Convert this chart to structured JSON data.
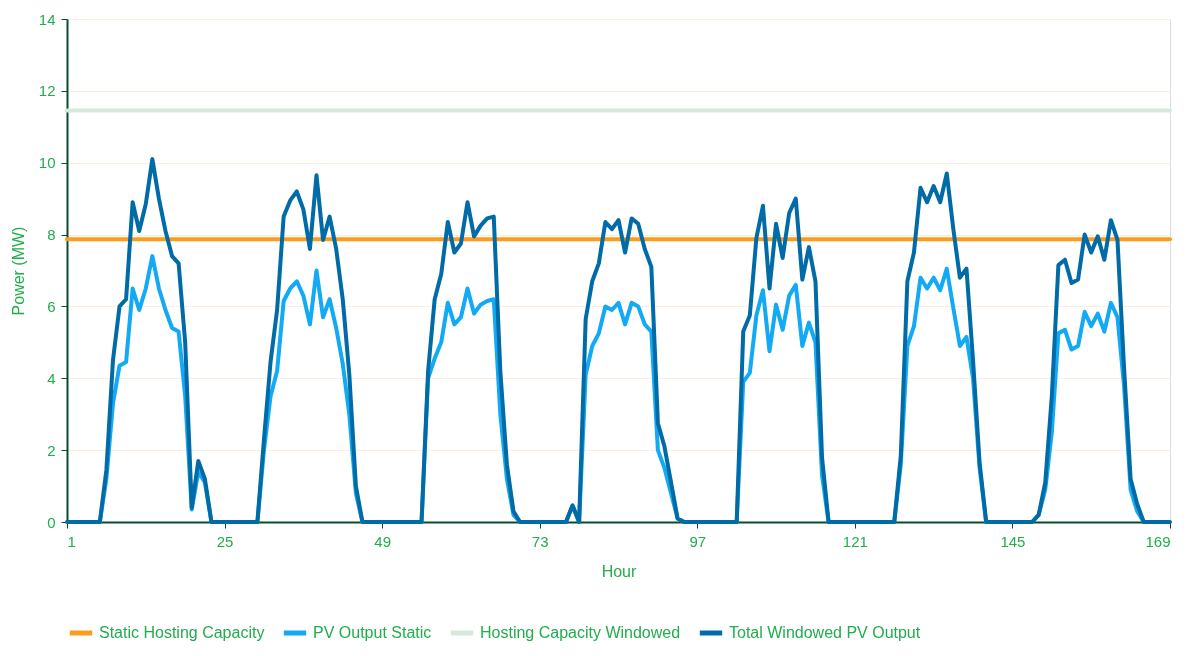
{
  "chart_data": {
    "type": "line",
    "xlabel": "Hour",
    "ylabel": "Power (MW)",
    "x": [
      1,
      2,
      3,
      4,
      5,
      6,
      7,
      8,
      9,
      10,
      11,
      12,
      13,
      14,
      15,
      16,
      17,
      18,
      19,
      20,
      21,
      22,
      23,
      24,
      25,
      26,
      27,
      28,
      29,
      30,
      31,
      32,
      33,
      34,
      35,
      36,
      37,
      38,
      39,
      40,
      41,
      42,
      43,
      44,
      45,
      46,
      47,
      48,
      49,
      50,
      51,
      52,
      53,
      54,
      55,
      56,
      57,
      58,
      59,
      60,
      61,
      62,
      63,
      64,
      65,
      66,
      67,
      68,
      69,
      70,
      71,
      72,
      73,
      74,
      75,
      76,
      77,
      78,
      79,
      80,
      81,
      82,
      83,
      84,
      85,
      86,
      87,
      88,
      89,
      90,
      91,
      92,
      93,
      94,
      95,
      96,
      97,
      98,
      99,
      100,
      101,
      102,
      103,
      104,
      105,
      106,
      107,
      108,
      109,
      110,
      111,
      112,
      113,
      114,
      115,
      116,
      117,
      118,
      119,
      120,
      121,
      122,
      123,
      124,
      125,
      126,
      127,
      128,
      129,
      130,
      131,
      132,
      133,
      134,
      135,
      136,
      137,
      138,
      139,
      140,
      141,
      142,
      143,
      144,
      145,
      146,
      147,
      148,
      149,
      150,
      151,
      152,
      153,
      154,
      155,
      156,
      157,
      158,
      159,
      160,
      161,
      162,
      163,
      164,
      165,
      166,
      167,
      168,
      169
    ],
    "series": [
      {
        "name": "Static Hosting Capacity",
        "color": "#ff9a1c",
        "values": [
          7.87,
          7.87,
          7.87,
          7.87,
          7.87,
          7.87,
          7.87,
          7.87,
          7.87,
          7.87,
          7.87,
          7.87,
          7.87,
          7.87,
          7.87,
          7.87,
          7.87,
          7.87,
          7.87,
          7.87,
          7.87,
          7.87,
          7.87,
          7.87,
          7.87,
          7.87,
          7.87,
          7.87,
          7.87,
          7.87,
          7.87,
          7.87,
          7.87,
          7.87,
          7.87,
          7.87,
          7.87,
          7.87,
          7.87,
          7.87,
          7.87,
          7.87,
          7.87,
          7.87,
          7.87,
          7.87,
          7.87,
          7.87,
          7.87,
          7.87,
          7.87,
          7.87,
          7.87,
          7.87,
          7.87,
          7.87,
          7.87,
          7.87,
          7.87,
          7.87,
          7.87,
          7.87,
          7.87,
          7.87,
          7.87,
          7.87,
          7.87,
          7.87,
          7.87,
          7.87,
          7.87,
          7.87,
          7.87,
          7.87,
          7.87,
          7.87,
          7.87,
          7.87,
          7.87,
          7.87,
          7.87,
          7.87,
          7.87,
          7.87,
          7.87,
          7.87,
          7.87,
          7.87,
          7.87,
          7.87,
          7.87,
          7.87,
          7.87,
          7.87,
          7.87,
          7.87,
          7.87,
          7.87,
          7.87,
          7.87,
          7.87,
          7.87,
          7.87,
          7.87,
          7.87,
          7.87,
          7.87,
          7.87,
          7.87,
          7.87,
          7.87,
          7.87,
          7.87,
          7.87,
          7.87,
          7.87,
          7.87,
          7.87,
          7.87,
          7.87,
          7.87,
          7.87,
          7.87,
          7.87,
          7.87,
          7.87,
          7.87,
          7.87,
          7.87,
          7.87,
          7.87,
          7.87,
          7.87,
          7.87,
          7.87,
          7.87,
          7.87,
          7.87,
          7.87,
          7.87,
          7.87,
          7.87,
          7.87,
          7.87,
          7.87,
          7.87,
          7.87,
          7.87,
          7.87,
          7.87,
          7.87,
          7.87,
          7.87,
          7.87,
          7.87,
          7.87,
          7.87,
          7.87,
          7.87,
          7.87,
          7.87,
          7.87,
          7.87,
          7.87,
          7.87,
          7.87,
          7.87,
          7.87,
          7.87
        ]
      },
      {
        "name": "PV Output Static",
        "color": "#12a9f5",
        "values": [
          null,
          null,
          null,
          null,
          0,
          0,
          1.2,
          3.3,
          4.35,
          4.45,
          6.5,
          5.9,
          6.5,
          7.4,
          6.5,
          5.9,
          5.4,
          5.3,
          3.5,
          0.35,
          1.4,
          1.1,
          0,
          0,
          0,
          0,
          0,
          0,
          0,
          0,
          2.0,
          3.5,
          4.2,
          6.15,
          6.5,
          6.7,
          6.3,
          5.5,
          7.0,
          5.7,
          6.2,
          5.4,
          4.4,
          3.0,
          0.8,
          0,
          0,
          0,
          0,
          0,
          0,
          0,
          0,
          0,
          0,
          4.0,
          4.55,
          5.0,
          6.1,
          5.5,
          5.7,
          6.5,
          5.8,
          6.05,
          6.15,
          6.2,
          3.0,
          1.2,
          0.2,
          0,
          0,
          0,
          0,
          0,
          0,
          0,
          0,
          0.46,
          0,
          4.1,
          4.9,
          5.25,
          6.0,
          5.9,
          6.1,
          5.5,
          6.1,
          6.0,
          5.5,
          5.3,
          2.0,
          1.5,
          0.8,
          0.1,
          0,
          0,
          0,
          0,
          0,
          0,
          0,
          0,
          0,
          3.9,
          4.15,
          5.75,
          6.45,
          4.75,
          6.05,
          5.35,
          6.3,
          6.6,
          4.9,
          5.55,
          5.0,
          1.3,
          0,
          0,
          0,
          0,
          0,
          0,
          0,
          0,
          0,
          0,
          0,
          1.6,
          4.9,
          5.45,
          6.8,
          6.5,
          6.8,
          6.45,
          7.05,
          5.95,
          4.9,
          5.15,
          4.0,
          1.5,
          0,
          0,
          0,
          0,
          0,
          0,
          0,
          0,
          0.2,
          0.9,
          2.5,
          5.25,
          5.35,
          4.8,
          4.9,
          5.85,
          5.45,
          5.8,
          5.3,
          6.1,
          5.7,
          3.8,
          0.9,
          0.3,
          0,
          0,
          null,
          null,
          null
        ]
      },
      {
        "name": "Hosting Capacity Windowed",
        "color": "#d5e8dc",
        "values": [
          11.45,
          11.45,
          11.45,
          11.45,
          11.45,
          11.45,
          11.45,
          11.45,
          11.45,
          11.45,
          11.45,
          11.45,
          11.45,
          11.45,
          11.45,
          11.45,
          11.45,
          11.45,
          11.45,
          11.45,
          11.45,
          11.45,
          11.45,
          11.45,
          11.45,
          11.45,
          11.45,
          11.45,
          11.45,
          11.45,
          11.45,
          11.45,
          11.45,
          11.45,
          11.45,
          11.45,
          11.45,
          11.45,
          11.45,
          11.45,
          11.45,
          11.45,
          11.45,
          11.45,
          11.45,
          11.45,
          11.45,
          11.45,
          11.45,
          11.45,
          11.45,
          11.45,
          11.45,
          11.45,
          11.45,
          11.45,
          11.45,
          11.45,
          11.45,
          11.45,
          11.45,
          11.45,
          11.45,
          11.45,
          11.45,
          11.45,
          11.45,
          11.45,
          11.45,
          11.45,
          11.45,
          11.45,
          11.45,
          11.45,
          11.45,
          11.45,
          11.45,
          11.45,
          11.45,
          11.45,
          11.45,
          11.45,
          11.45,
          11.45,
          11.45,
          11.45,
          11.45,
          11.45,
          11.45,
          11.45,
          11.45,
          11.45,
          11.45,
          11.45,
          11.45,
          11.45,
          11.45,
          11.45,
          11.45,
          11.45,
          11.45,
          11.45,
          11.45,
          11.45,
          11.45,
          11.45,
          11.45,
          11.45,
          11.45,
          11.45,
          11.45,
          11.45,
          11.45,
          11.45,
          11.45,
          11.45,
          11.45,
          11.45,
          11.45,
          11.45,
          11.45,
          11.45,
          11.45,
          11.45,
          11.45,
          11.45,
          11.45,
          11.45,
          11.45,
          11.45,
          11.45,
          11.45,
          11.45,
          11.45,
          11.45,
          11.45,
          11.45,
          11.45,
          11.45,
          11.45,
          11.45,
          11.45,
          11.45,
          11.45,
          11.45,
          11.45,
          11.45,
          11.45,
          11.45,
          11.45,
          11.45,
          11.45,
          11.45,
          11.45,
          11.45,
          11.45,
          11.45,
          11.45,
          11.45,
          11.45,
          11.45,
          11.45,
          11.45,
          11.45,
          11.45,
          11.45,
          11.45,
          11.45,
          11.45
        ]
      },
      {
        "name": "Total Windowed PV Output",
        "color": "#006ba6",
        "values": [
          0,
          0,
          0,
          0,
          0,
          0,
          1.45,
          4.5,
          6.0,
          6.2,
          8.9,
          8.1,
          8.85,
          10.1,
          9.0,
          8.1,
          7.4,
          7.2,
          5.0,
          0.4,
          1.7,
          1.2,
          0,
          0,
          0,
          0,
          0,
          0,
          0,
          0,
          2.3,
          4.45,
          5.9,
          8.5,
          8.95,
          9.2,
          8.7,
          7.6,
          9.65,
          7.85,
          8.5,
          7.6,
          6.2,
          4.1,
          1.0,
          0,
          0,
          0,
          0,
          0,
          0,
          0,
          0,
          0,
          0,
          4.2,
          6.2,
          6.9,
          8.35,
          7.5,
          7.75,
          8.9,
          7.95,
          8.25,
          8.45,
          8.5,
          4.2,
          1.6,
          0.3,
          0,
          0,
          0,
          0,
          0,
          0,
          0,
          0,
          0.46,
          0,
          5.65,
          6.7,
          7.2,
          8.35,
          8.15,
          8.4,
          7.5,
          8.45,
          8.3,
          7.6,
          7.1,
          2.75,
          2.1,
          1.1,
          0.1,
          0,
          0,
          0,
          0,
          0,
          0,
          0,
          0,
          0,
          5.3,
          5.75,
          7.9,
          8.8,
          6.5,
          8.3,
          7.35,
          8.6,
          9.0,
          6.75,
          7.65,
          6.7,
          1.8,
          0,
          0,
          0,
          0,
          0,
          0,
          0,
          0,
          0,
          0,
          0,
          1.85,
          6.7,
          7.5,
          9.3,
          8.9,
          9.35,
          8.9,
          9.7,
          8.15,
          6.8,
          7.05,
          4.5,
          1.65,
          0,
          0,
          0,
          0,
          0,
          0,
          0,
          0,
          0.2,
          1.1,
          3.5,
          7.15,
          7.3,
          6.65,
          6.75,
          8.0,
          7.5,
          7.95,
          7.3,
          8.4,
          7.85,
          4.3,
          1.2,
          0.5,
          0,
          0,
          0,
          0,
          0
        ]
      }
    ],
    "xlim": [
      1,
      169
    ],
    "xticks": [
      1,
      25,
      49,
      73,
      97,
      121,
      145,
      169
    ],
    "ylim": [
      0,
      14
    ],
    "yticks": [
      0,
      2,
      4,
      6,
      8,
      10,
      12,
      14
    ],
    "grid": "y",
    "legend": "bottom"
  }
}
